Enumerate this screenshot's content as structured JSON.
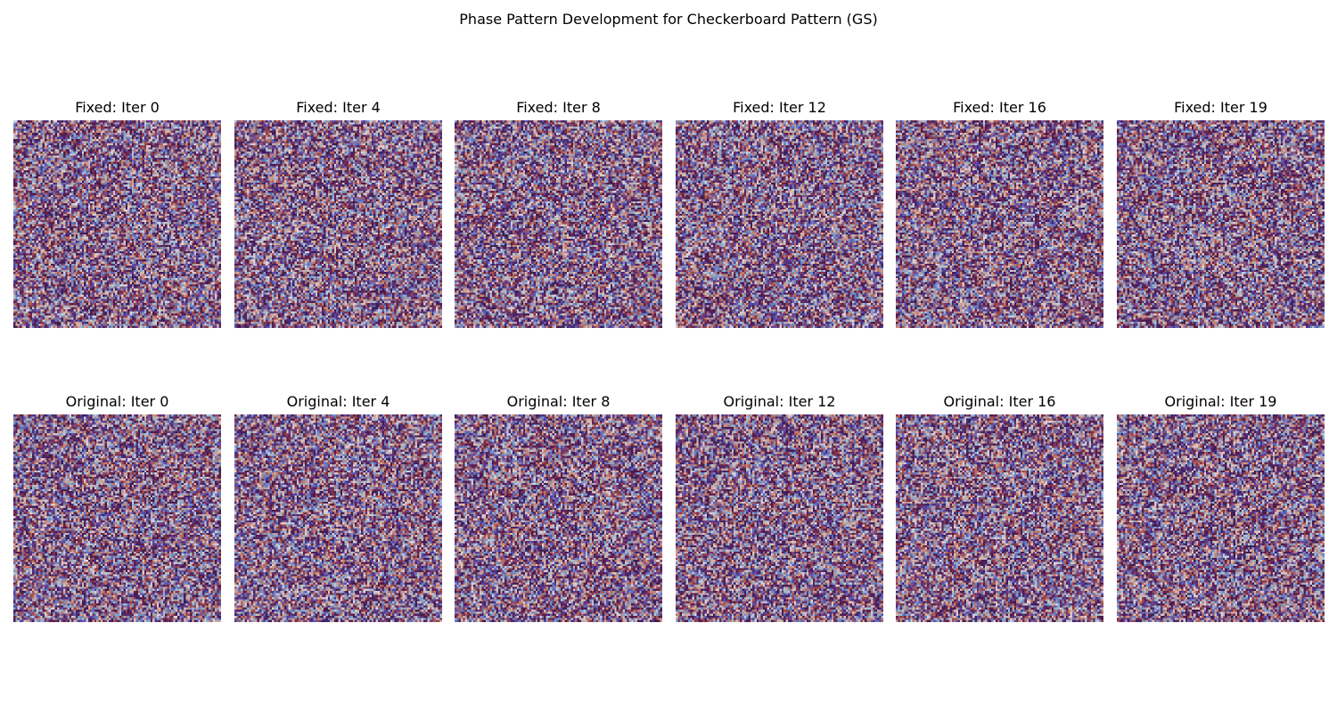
{
  "chart_data": {
    "type": "heatmap",
    "title": "Phase Pattern Development for Checkerboard Pattern (GS)",
    "grid": false,
    "colormap": "twilight",
    "rows": [
      {
        "panels": [
          {
            "title": "Fixed: Iter 0"
          },
          {
            "title": "Fixed: Iter 4"
          },
          {
            "title": "Fixed: Iter 8"
          },
          {
            "title": "Fixed: Iter 12"
          },
          {
            "title": "Fixed: Iter 16"
          },
          {
            "title": "Fixed: Iter 19"
          }
        ]
      },
      {
        "panels": [
          {
            "title": "Original: Iter 0"
          },
          {
            "title": "Original: Iter 4"
          },
          {
            "title": "Original: Iter 8"
          },
          {
            "title": "Original: Iter 12"
          },
          {
            "title": "Original: Iter 16"
          },
          {
            "title": "Original: Iter 19"
          }
        ]
      }
    ],
    "colors": [
      "#e2d9e2",
      "#9fb9cc",
      "#6a86c2",
      "#5e43a5",
      "#3b1c53",
      "#5d1c4e",
      "#a04a4d",
      "#c78c7c",
      "#d7c3c0"
    ]
  }
}
